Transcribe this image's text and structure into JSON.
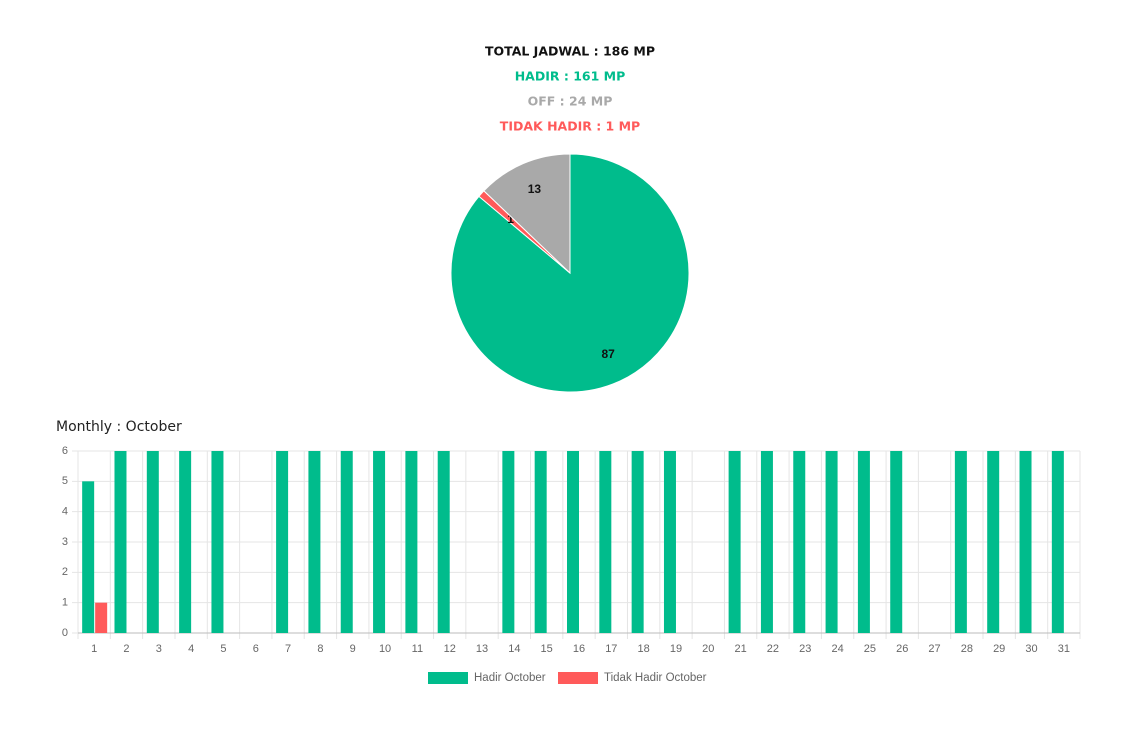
{
  "summary": [
    {
      "text": "TOTAL JADWAL : 186 MP",
      "color": "#111111"
    },
    {
      "text": "HADIR : 161 MP",
      "color": "#00bc8c"
    },
    {
      "text": "OFF : 24 MP",
      "color": "#a9a9a9"
    },
    {
      "text": "TIDAK HADIR : 1 MP",
      "color": "#ff5a5a"
    }
  ],
  "chart_data": [
    {
      "type": "pie",
      "values": [
        87,
        1,
        13
      ],
      "colors": [
        "#00bc8c",
        "#ff5a5a",
        "#a9a9a9"
      ]
    },
    {
      "type": "bar",
      "title": "Monthly : October",
      "categories": [
        "1",
        "2",
        "3",
        "4",
        "5",
        "6",
        "7",
        "8",
        "9",
        "10",
        "11",
        "12",
        "13",
        "14",
        "15",
        "16",
        "17",
        "18",
        "19",
        "20",
        "21",
        "22",
        "23",
        "24",
        "25",
        "26",
        "27",
        "28",
        "29",
        "30",
        "31"
      ],
      "series": [
        {
          "name": "Hadir October",
          "color": "#00bc8c",
          "values": [
            5,
            6,
            6,
            6,
            6,
            0,
            6,
            6,
            6,
            6,
            6,
            6,
            0,
            6,
            6,
            6,
            6,
            6,
            6,
            0,
            6,
            6,
            6,
            6,
            6,
            6,
            0,
            6,
            6,
            6,
            6
          ]
        },
        {
          "name": "Tidak Hadir October",
          "color": "#ff5a5a",
          "values": [
            1,
            0,
            0,
            0,
            0,
            0,
            0,
            0,
            0,
            0,
            0,
            0,
            0,
            0,
            0,
            0,
            0,
            0,
            0,
            0,
            0,
            0,
            0,
            0,
            0,
            0,
            0,
            0,
            0,
            0,
            0
          ]
        }
      ],
      "ylim": [
        0,
        6
      ],
      "yticks": [
        0,
        1,
        2,
        3,
        4,
        5,
        6
      ],
      "grid": true
    }
  ]
}
